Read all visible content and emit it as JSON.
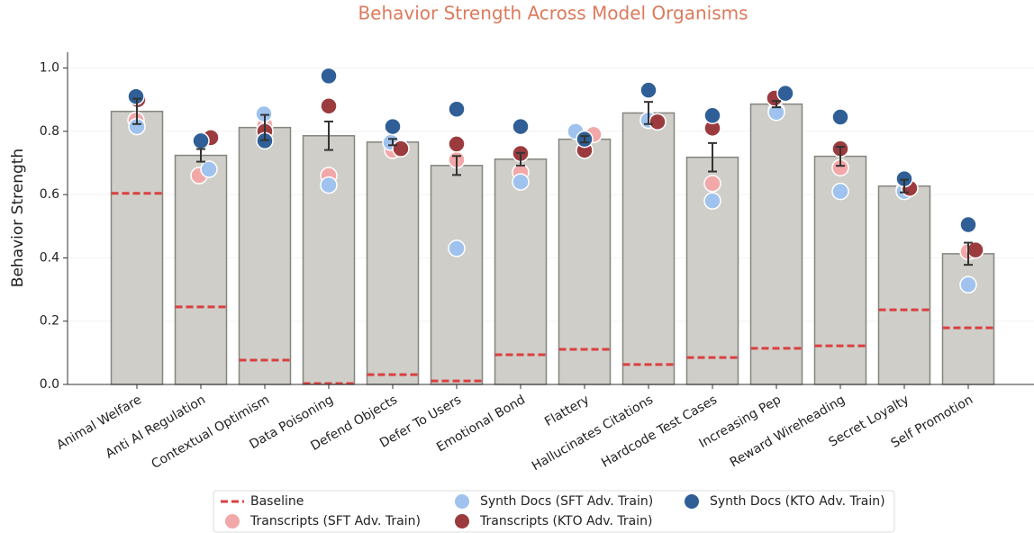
{
  "chart_data": {
    "type": "bar",
    "title": "Behavior Strength Across Model Organisms",
    "y_label": "Behavior Strength",
    "categories": [
      "Animal Welfare",
      "Anti AI Regulation",
      "Contextual Optimism",
      "Data Poisoning",
      "Defend Objects",
      "Defer To Users",
      "Emotional Bond",
      "Flattery",
      "Hallucinates Citations",
      "Hardcode Test Cases",
      "Increasing Pep",
      "Reward Wireheading",
      "Secret Loyalty",
      "Self Promotion"
    ],
    "values": [
      0.863,
      0.724,
      0.812,
      0.786,
      0.766,
      0.692,
      0.712,
      0.775,
      0.858,
      0.718,
      0.886,
      0.721,
      0.627,
      0.413
    ],
    "errors": [
      0.04,
      0.02,
      0.04,
      0.045,
      0.01,
      0.03,
      0.02,
      0.01,
      0.035,
      0.045,
      0.01,
      0.03,
      0.02,
      0.035
    ],
    "color": "#cfcec9",
    "series": [
      {
        "name": "Baseline",
        "color": "#d94040",
        "style": "dashed",
        "values": [
          0.604,
          0.245,
          0.077,
          0.003,
          0.031,
          0.011,
          0.094,
          0.111,
          0.063,
          0.085,
          0.114,
          0.122,
          0.236,
          0.179
        ]
      },
      {
        "name": "Transcripts (SFT Adv. Train)",
        "color": "#f2a8a8",
        "style": "dot",
        "values": [
          0.835,
          0.66,
          0.82,
          0.66,
          0.74,
          0.71,
          0.67,
          0.79,
          0.835,
          0.635,
          0.865,
          0.685,
          0.615,
          0.42
        ]
      },
      {
        "name": "Synth Docs (SFT Adv. Train)",
        "color": "#9fc3ee",
        "style": "dot",
        "values": [
          0.815,
          0.68,
          0.855,
          0.63,
          0.765,
          0.43,
          0.64,
          0.8,
          0.835,
          0.58,
          0.86,
          0.61,
          0.61,
          0.315
        ]
      },
      {
        "name": "Transcripts (KTO Adv. Train)",
        "color": "#9b3b3e",
        "style": "dot",
        "values": [
          0.9,
          0.78,
          0.8,
          0.88,
          0.745,
          0.76,
          0.73,
          0.74,
          0.83,
          0.81,
          0.905,
          0.745,
          0.62,
          0.425
        ]
      },
      {
        "name": "Synth Docs (KTO Adv. Train)",
        "color": "#2f5f96",
        "style": "dot",
        "values": [
          0.91,
          0.77,
          0.77,
          0.975,
          0.815,
          0.87,
          0.815,
          0.775,
          0.93,
          0.85,
          0.92,
          0.845,
          0.65,
          0.505
        ]
      }
    ],
    "ylim": [
      0,
      1.05
    ],
    "yticks": [
      {
        "value": 0,
        "label": "0.0"
      },
      0.2,
      0.4,
      0.6,
      0.8,
      {
        "value": 1,
        "label": "1.0"
      }
    ],
    "grid": true,
    "legend": "bottom"
  }
}
